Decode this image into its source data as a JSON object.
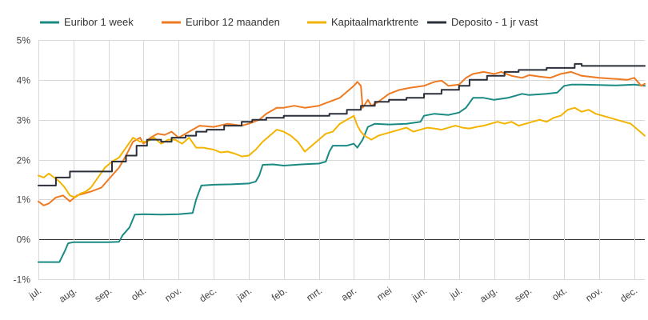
{
  "chart_data": {
    "type": "line",
    "title": "",
    "xlabel": "",
    "ylabel": "",
    "ylim": [
      -1,
      5
    ],
    "grid": true,
    "legend_position": "top",
    "y_ticks": [
      "-1%",
      "0%",
      "1%",
      "2%",
      "3%",
      "4%",
      "5%"
    ],
    "y_tick_values": [
      -1,
      0,
      1,
      2,
      3,
      4,
      5
    ],
    "x_ticks": [
      "jul.",
      "aug.",
      "sep.",
      "okt.",
      "nov.",
      "dec.",
      "jan.",
      "feb.",
      "mrt.",
      "apr.",
      "mei",
      "jun.",
      "jul.",
      "aug.",
      "sep.",
      "okt.",
      "nov.",
      "dec."
    ],
    "x_range": [
      0,
      17.3
    ],
    "series": [
      {
        "name": "Euribor 1 week",
        "color": "#1a8a82",
        "points": [
          [
            0,
            -0.57
          ],
          [
            0.3,
            -0.57
          ],
          [
            0.6,
            -0.57
          ],
          [
            0.75,
            -0.3
          ],
          [
            0.85,
            -0.1
          ],
          [
            1,
            -0.07
          ],
          [
            1.5,
            -0.07
          ],
          [
            2,
            -0.07
          ],
          [
            2.3,
            -0.06
          ],
          [
            2.4,
            0.1
          ],
          [
            2.6,
            0.3
          ],
          [
            2.75,
            0.62
          ],
          [
            3,
            0.63
          ],
          [
            3.5,
            0.62
          ],
          [
            4,
            0.63
          ],
          [
            4.4,
            0.66
          ],
          [
            4.5,
            1.0
          ],
          [
            4.65,
            1.35
          ],
          [
            5,
            1.37
          ],
          [
            5.5,
            1.38
          ],
          [
            6,
            1.4
          ],
          [
            6.2,
            1.45
          ],
          [
            6.3,
            1.6
          ],
          [
            6.4,
            1.87
          ],
          [
            6.7,
            1.88
          ],
          [
            7,
            1.85
          ],
          [
            7.5,
            1.88
          ],
          [
            8,
            1.9
          ],
          [
            8.2,
            1.95
          ],
          [
            8.3,
            2.2
          ],
          [
            8.4,
            2.35
          ],
          [
            8.8,
            2.35
          ],
          [
            9,
            2.4
          ],
          [
            9.1,
            2.3
          ],
          [
            9.25,
            2.5
          ],
          [
            9.4,
            2.82
          ],
          [
            9.6,
            2.9
          ],
          [
            10,
            2.88
          ],
          [
            10.5,
            2.9
          ],
          [
            10.9,
            2.95
          ],
          [
            11,
            3.1
          ],
          [
            11.3,
            3.15
          ],
          [
            11.7,
            3.12
          ],
          [
            12,
            3.18
          ],
          [
            12.2,
            3.3
          ],
          [
            12.4,
            3.55
          ],
          [
            12.7,
            3.55
          ],
          [
            13,
            3.5
          ],
          [
            13.4,
            3.55
          ],
          [
            13.6,
            3.6
          ],
          [
            13.8,
            3.65
          ],
          [
            14,
            3.62
          ],
          [
            14.5,
            3.65
          ],
          [
            14.8,
            3.68
          ],
          [
            15,
            3.85
          ],
          [
            15.2,
            3.88
          ],
          [
            15.5,
            3.88
          ],
          [
            16,
            3.87
          ],
          [
            16.5,
            3.86
          ],
          [
            17,
            3.88
          ],
          [
            17.3,
            3.85
          ]
        ]
      },
      {
        "name": "Euribor 12 maanden",
        "color": "#ee7a22",
        "points": [
          [
            0,
            0.95
          ],
          [
            0.15,
            0.85
          ],
          [
            0.3,
            0.9
          ],
          [
            0.5,
            1.05
          ],
          [
            0.7,
            1.1
          ],
          [
            0.9,
            0.95
          ],
          [
            1.1,
            1.1
          ],
          [
            1.3,
            1.15
          ],
          [
            1.5,
            1.2
          ],
          [
            1.8,
            1.3
          ],
          [
            2,
            1.5
          ],
          [
            2.3,
            1.8
          ],
          [
            2.5,
            2.1
          ],
          [
            2.7,
            2.45
          ],
          [
            2.9,
            2.55
          ],
          [
            3,
            2.4
          ],
          [
            3.2,
            2.55
          ],
          [
            3.4,
            2.65
          ],
          [
            3.6,
            2.62
          ],
          [
            3.8,
            2.7
          ],
          [
            4,
            2.55
          ],
          [
            4.2,
            2.65
          ],
          [
            4.4,
            2.75
          ],
          [
            4.6,
            2.85
          ],
          [
            5,
            2.82
          ],
          [
            5.4,
            2.9
          ],
          [
            5.8,
            2.85
          ],
          [
            6,
            2.9
          ],
          [
            6.3,
            3.0
          ],
          [
            6.5,
            3.15
          ],
          [
            6.8,
            3.3
          ],
          [
            7,
            3.3
          ],
          [
            7.3,
            3.35
          ],
          [
            7.6,
            3.3
          ],
          [
            8,
            3.35
          ],
          [
            8.3,
            3.45
          ],
          [
            8.6,
            3.55
          ],
          [
            8.8,
            3.7
          ],
          [
            9,
            3.85
          ],
          [
            9.1,
            3.95
          ],
          [
            9.2,
            3.85
          ],
          [
            9.25,
            3.3
          ],
          [
            9.4,
            3.5
          ],
          [
            9.5,
            3.35
          ],
          [
            9.7,
            3.45
          ],
          [
            10,
            3.65
          ],
          [
            10.3,
            3.75
          ],
          [
            10.6,
            3.8
          ],
          [
            11,
            3.85
          ],
          [
            11.3,
            3.95
          ],
          [
            11.5,
            3.98
          ],
          [
            11.7,
            3.85
          ],
          [
            12,
            3.88
          ],
          [
            12.2,
            4.05
          ],
          [
            12.4,
            4.15
          ],
          [
            12.7,
            4.2
          ],
          [
            13,
            4.15
          ],
          [
            13.2,
            4.2
          ],
          [
            13.5,
            4.1
          ],
          [
            13.8,
            4.05
          ],
          [
            14,
            4.12
          ],
          [
            14.3,
            4.08
          ],
          [
            14.6,
            4.05
          ],
          [
            14.9,
            4.15
          ],
          [
            15.2,
            4.2
          ],
          [
            15.5,
            4.1
          ],
          [
            16,
            4.05
          ],
          [
            16.5,
            4.02
          ],
          [
            16.8,
            4.0
          ],
          [
            17,
            4.05
          ],
          [
            17.2,
            3.85
          ],
          [
            17.3,
            3.9
          ]
        ]
      },
      {
        "name": "Kapitaalmarktrente",
        "color": "#f3b400",
        "points": [
          [
            0,
            1.6
          ],
          [
            0.15,
            1.55
          ],
          [
            0.3,
            1.65
          ],
          [
            0.45,
            1.55
          ],
          [
            0.6,
            1.45
          ],
          [
            0.75,
            1.3
          ],
          [
            0.9,
            1.1
          ],
          [
            1.05,
            1.05
          ],
          [
            1.2,
            1.15
          ],
          [
            1.35,
            1.2
          ],
          [
            1.5,
            1.3
          ],
          [
            1.7,
            1.55
          ],
          [
            1.9,
            1.8
          ],
          [
            2.1,
            1.95
          ],
          [
            2.3,
            2.05
          ],
          [
            2.5,
            2.3
          ],
          [
            2.7,
            2.55
          ],
          [
            2.9,
            2.45
          ],
          [
            3.1,
            2.45
          ],
          [
            3.3,
            2.55
          ],
          [
            3.5,
            2.4
          ],
          [
            3.7,
            2.5
          ],
          [
            3.9,
            2.5
          ],
          [
            4.1,
            2.4
          ],
          [
            4.3,
            2.55
          ],
          [
            4.5,
            2.3
          ],
          [
            4.7,
            2.3
          ],
          [
            5,
            2.25
          ],
          [
            5.2,
            2.18
          ],
          [
            5.4,
            2.2
          ],
          [
            5.6,
            2.15
          ],
          [
            5.8,
            2.08
          ],
          [
            6,
            2.1
          ],
          [
            6.2,
            2.25
          ],
          [
            6.4,
            2.45
          ],
          [
            6.6,
            2.6
          ],
          [
            6.8,
            2.75
          ],
          [
            7,
            2.7
          ],
          [
            7.2,
            2.6
          ],
          [
            7.4,
            2.45
          ],
          [
            7.6,
            2.2
          ],
          [
            7.8,
            2.35
          ],
          [
            8,
            2.5
          ],
          [
            8.2,
            2.65
          ],
          [
            8.4,
            2.7
          ],
          [
            8.6,
            2.9
          ],
          [
            8.8,
            3.0
          ],
          [
            9,
            3.1
          ],
          [
            9.1,
            2.85
          ],
          [
            9.2,
            2.7
          ],
          [
            9.3,
            2.6
          ],
          [
            9.4,
            2.55
          ],
          [
            9.5,
            2.5
          ],
          [
            9.7,
            2.6
          ],
          [
            9.9,
            2.65
          ],
          [
            10.1,
            2.7
          ],
          [
            10.3,
            2.75
          ],
          [
            10.5,
            2.8
          ],
          [
            10.7,
            2.7
          ],
          [
            10.9,
            2.75
          ],
          [
            11.1,
            2.8
          ],
          [
            11.3,
            2.78
          ],
          [
            11.5,
            2.75
          ],
          [
            11.7,
            2.8
          ],
          [
            11.9,
            2.85
          ],
          [
            12.1,
            2.8
          ],
          [
            12.3,
            2.78
          ],
          [
            12.5,
            2.82
          ],
          [
            12.7,
            2.85
          ],
          [
            12.9,
            2.9
          ],
          [
            13.1,
            2.95
          ],
          [
            13.3,
            2.9
          ],
          [
            13.5,
            2.95
          ],
          [
            13.7,
            2.85
          ],
          [
            13.9,
            2.9
          ],
          [
            14.1,
            2.95
          ],
          [
            14.3,
            3.0
          ],
          [
            14.5,
            2.95
          ],
          [
            14.7,
            3.05
          ],
          [
            14.9,
            3.1
          ],
          [
            15.1,
            3.25
          ],
          [
            15.3,
            3.3
          ],
          [
            15.5,
            3.2
          ],
          [
            15.7,
            3.25
          ],
          [
            15.9,
            3.15
          ],
          [
            16.1,
            3.1
          ],
          [
            16.3,
            3.05
          ],
          [
            16.5,
            3.0
          ],
          [
            16.7,
            2.95
          ],
          [
            16.9,
            2.9
          ],
          [
            17.1,
            2.75
          ],
          [
            17.3,
            2.6
          ]
        ]
      },
      {
        "name": "Deposito - 1 jr vast",
        "color": "#2a2f3a",
        "points": [
          [
            0,
            1.35
          ],
          [
            0.5,
            1.35
          ],
          [
            0.5,
            1.55
          ],
          [
            0.9,
            1.55
          ],
          [
            0.9,
            1.7
          ],
          [
            1.5,
            1.7
          ],
          [
            2.1,
            1.7
          ],
          [
            2.1,
            1.95
          ],
          [
            2.5,
            1.95
          ],
          [
            2.5,
            2.1
          ],
          [
            2.8,
            2.1
          ],
          [
            2.8,
            2.35
          ],
          [
            3.1,
            2.35
          ],
          [
            3.1,
            2.5
          ],
          [
            3.5,
            2.5
          ],
          [
            3.5,
            2.45
          ],
          [
            3.8,
            2.45
          ],
          [
            3.8,
            2.55
          ],
          [
            4.2,
            2.55
          ],
          [
            4.2,
            2.6
          ],
          [
            4.5,
            2.6
          ],
          [
            4.5,
            2.7
          ],
          [
            4.8,
            2.7
          ],
          [
            4.8,
            2.75
          ],
          [
            5.3,
            2.75
          ],
          [
            5.3,
            2.85
          ],
          [
            5.8,
            2.85
          ],
          [
            5.8,
            2.95
          ],
          [
            6.1,
            2.95
          ],
          [
            6.1,
            3.0
          ],
          [
            6.5,
            3.0
          ],
          [
            6.5,
            3.05
          ],
          [
            7,
            3.05
          ],
          [
            7,
            3.1
          ],
          [
            7.5,
            3.1
          ],
          [
            7.5,
            3.1
          ],
          [
            8.3,
            3.1
          ],
          [
            8.3,
            3.15
          ],
          [
            8.8,
            3.15
          ],
          [
            8.8,
            3.25
          ],
          [
            9.2,
            3.25
          ],
          [
            9.2,
            3.35
          ],
          [
            9.6,
            3.35
          ],
          [
            9.6,
            3.45
          ],
          [
            10,
            3.45
          ],
          [
            10,
            3.5
          ],
          [
            10.5,
            3.5
          ],
          [
            10.5,
            3.55
          ],
          [
            11,
            3.55
          ],
          [
            11,
            3.65
          ],
          [
            11.5,
            3.65
          ],
          [
            11.5,
            3.75
          ],
          [
            12,
            3.75
          ],
          [
            12,
            3.85
          ],
          [
            12.3,
            3.85
          ],
          [
            12.3,
            4.0
          ],
          [
            12.8,
            4.0
          ],
          [
            12.8,
            4.1
          ],
          [
            13.3,
            4.1
          ],
          [
            13.3,
            4.2
          ],
          [
            13.7,
            4.2
          ],
          [
            13.7,
            4.25
          ],
          [
            14.5,
            4.25
          ],
          [
            14.5,
            4.3
          ],
          [
            15.3,
            4.3
          ],
          [
            15.3,
            4.4
          ],
          [
            15.5,
            4.4
          ],
          [
            15.5,
            4.35
          ],
          [
            17.3,
            4.35
          ]
        ]
      }
    ]
  }
}
